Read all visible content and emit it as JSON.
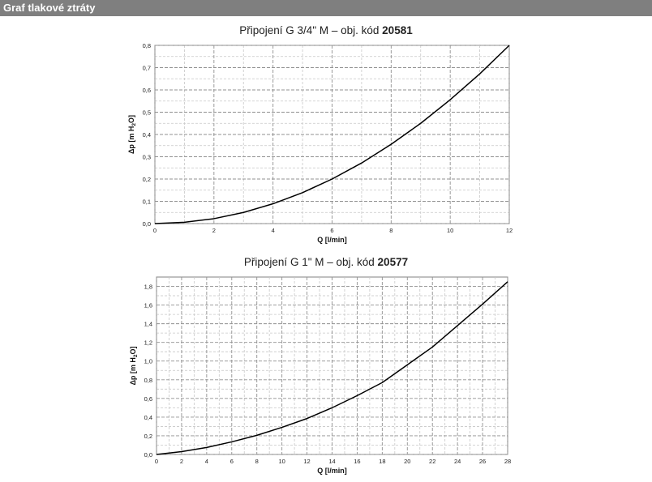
{
  "header": {
    "title": "Graf tlakové ztráty"
  },
  "chart_data": [
    {
      "type": "line",
      "title_prefix": "Připojení G 3/4\" M – obj. kód",
      "title_code": "20581",
      "xlabel": "Q [l/min]",
      "ylabel_main": "Δp [m H",
      "ylabel_sub": "2",
      "ylabel_end": "O]",
      "xlim": [
        0,
        12
      ],
      "ylim": [
        0,
        0.8
      ],
      "x_ticks": [
        0,
        2,
        4,
        6,
        8,
        10,
        12
      ],
      "y_ticks": [
        "0,0",
        "0,1",
        "0,2",
        "0,3",
        "0,4",
        "0,5",
        "0,6",
        "0,7",
        "0,8"
      ],
      "grid": true,
      "series": [
        {
          "x": [
            0,
            1,
            2,
            3,
            4,
            5,
            6,
            7,
            8,
            9,
            10,
            11,
            12
          ],
          "y": [
            0.0,
            0.006,
            0.022,
            0.05,
            0.089,
            0.139,
            0.2,
            0.272,
            0.356,
            0.45,
            0.556,
            0.672,
            0.8
          ]
        }
      ]
    },
    {
      "type": "line",
      "title_prefix": "Připojení G 1\" M – obj. kód",
      "title_code": "20577",
      "xlabel": "Q [l/min]",
      "ylabel_main": "Δp [m H",
      "ylabel_sub": "2",
      "ylabel_end": "O]",
      "xlim": [
        0,
        28
      ],
      "ylim": [
        0,
        1.9
      ],
      "x_ticks": [
        0,
        2,
        4,
        6,
        8,
        10,
        12,
        14,
        16,
        18,
        20,
        22,
        24,
        26,
        28
      ],
      "y_ticks": [
        "0,0",
        "0,2",
        "0,4",
        "0,6",
        "0,8",
        "1,0",
        "1,2",
        "1,4",
        "1,6",
        "1,8"
      ],
      "y_tick_values": [
        0,
        0.2,
        0.4,
        0.6,
        0.8,
        1.0,
        1.2,
        1.4,
        1.6,
        1.8
      ],
      "grid": true,
      "series": [
        {
          "x": [
            0,
            2,
            4,
            6,
            8,
            10,
            12,
            14,
            16,
            18,
            20,
            22,
            24,
            26,
            28
          ],
          "y": [
            0.0,
            0.03,
            0.075,
            0.135,
            0.205,
            0.29,
            0.385,
            0.5,
            0.63,
            0.77,
            0.96,
            1.15,
            1.38,
            1.61,
            1.85
          ]
        }
      ]
    }
  ]
}
